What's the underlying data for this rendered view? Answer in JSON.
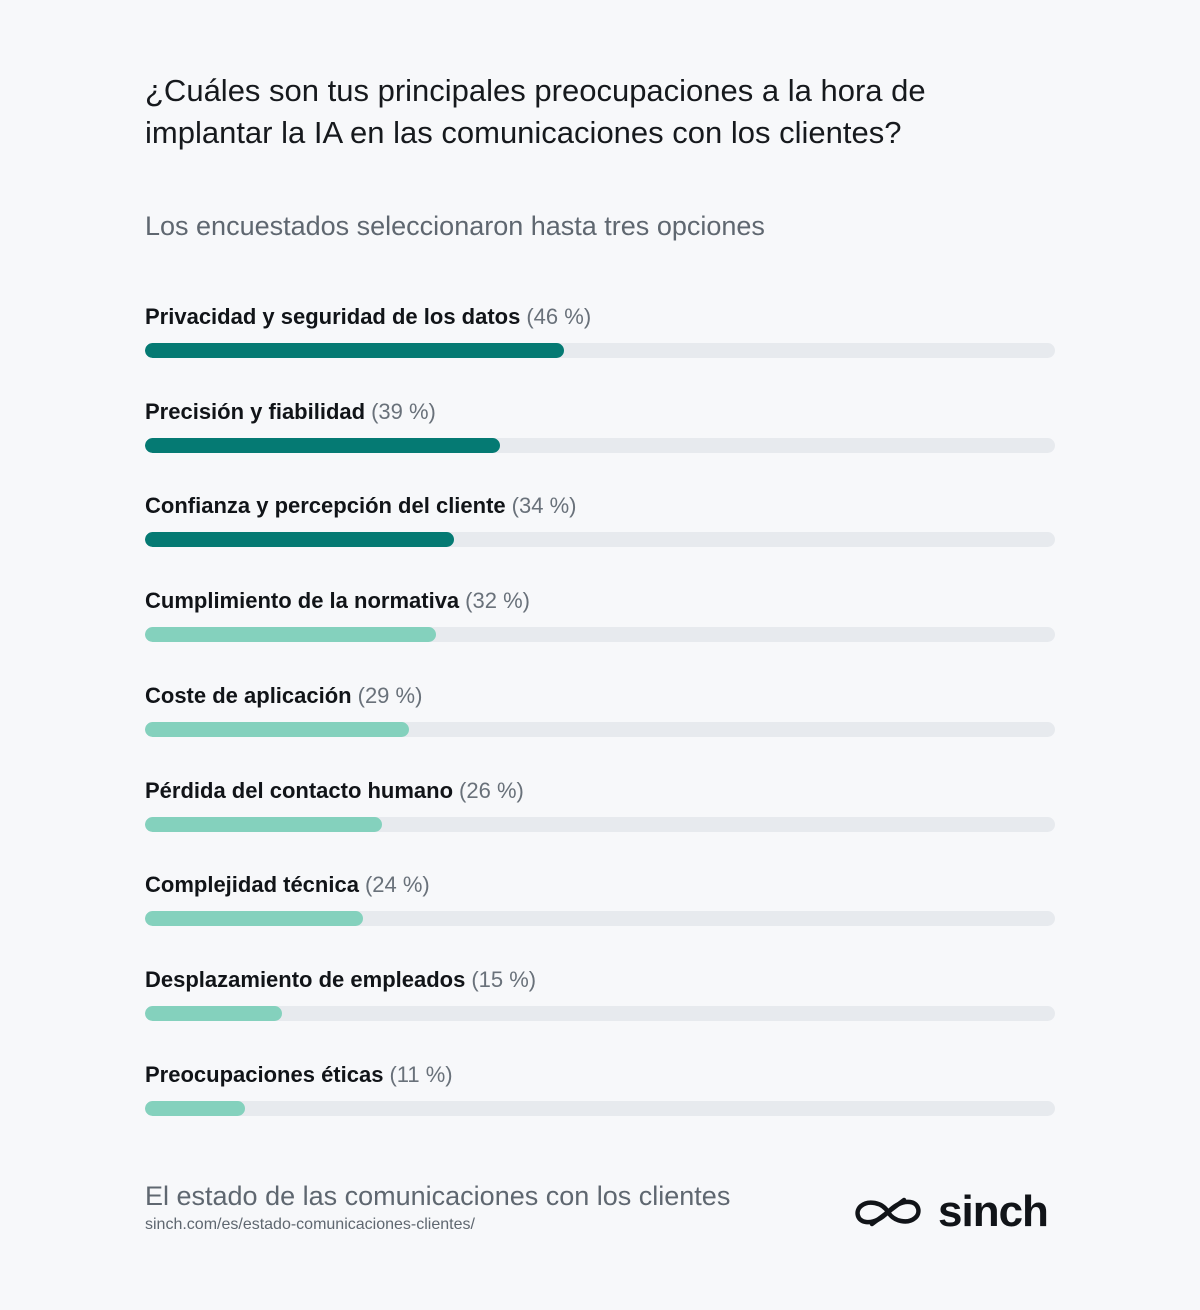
{
  "title": "¿Cuáles son tus principales preocupaciones a la hora de implantar la IA en las comunicaciones con los clientes?",
  "subtitle": "Los encuestados seleccionaron hasta tres opciones",
  "colors": {
    "background": "#f7f8fa",
    "track": "#e7eaee",
    "dark_fill": "#057a73",
    "light_fill": "#84d1bd",
    "pct_text": "#69717a"
  },
  "chart_data": {
    "type": "bar",
    "orientation": "horizontal",
    "title": "¿Cuáles son tus principales preocupaciones a la hora de implantar la IA en las comunicaciones con los clientes?",
    "subtitle": "Los encuestados seleccionaron hasta tres opciones",
    "xlim": [
      0,
      100
    ],
    "grid": false,
    "unit": "%",
    "categories": [
      "Privacidad y seguridad de los datos",
      "Precisión y fiabilidad",
      "Confianza y percepción del cliente",
      "Cumplimiento de la normativa",
      "Coste de aplicación",
      "Pérdida del contacto humano",
      "Complejidad técnica",
      "Desplazamiento de empleados",
      "Preocupaciones éticas"
    ],
    "values": [
      46,
      39,
      34,
      32,
      29,
      26,
      24,
      15,
      11
    ],
    "value_labels": [
      "(46 %)",
      "(39 %)",
      "(34 %)",
      "(32 %)",
      "(29 %)",
      "(26 %)",
      "(24 %)",
      "(15 %)",
      "(11 %)"
    ],
    "highlight": [
      true,
      true,
      true,
      false,
      false,
      false,
      false,
      false,
      false
    ]
  },
  "footer": {
    "report_title": "El estado de las comunicaciones con los clientes",
    "url": "sinch.com/es/estado-comunicaciones-clientes/"
  },
  "logo": {
    "text": "sinch",
    "icon": "sinch-infinity-logo-icon"
  }
}
